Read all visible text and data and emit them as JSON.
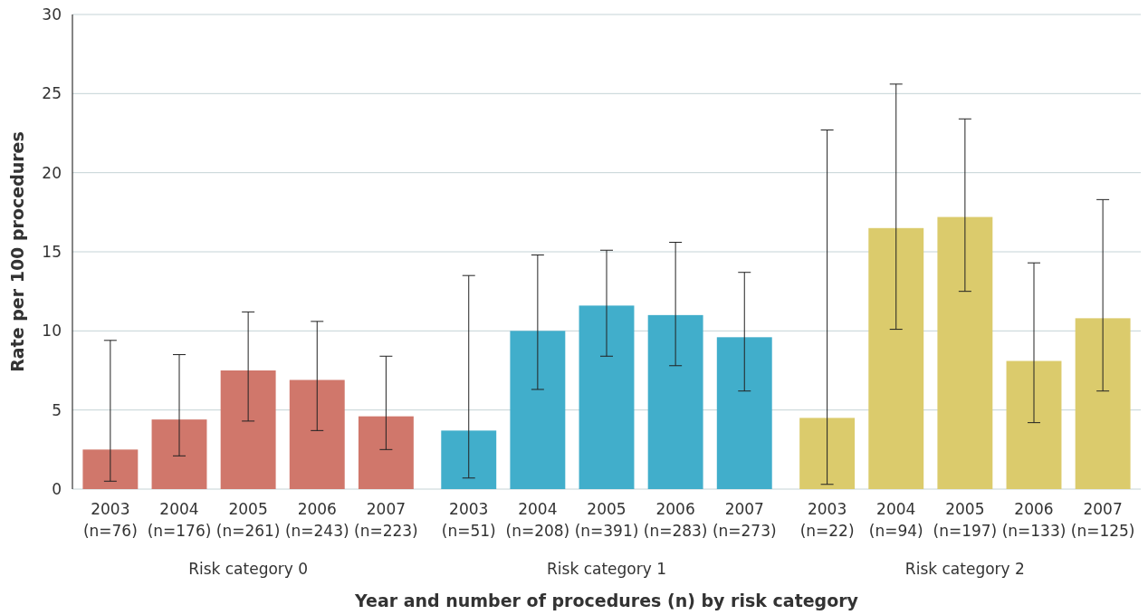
{
  "chart_data": {
    "type": "bar",
    "xlabel": "Year and number of procedures (n) by risk category",
    "ylabel": "Rate per 100 procedures",
    "categories": [
      "2003 (n=76)",
      "2004 (n=176)",
      "2005 (n=261)",
      "2006 (n=243)",
      "2007 (n=223)",
      "2003 (n=51)",
      "2004 (n=208)",
      "2005 (n=391)",
      "2006 (n=283)",
      "2007 (n=273)",
      "2003 (n=22)",
      "2004 (n=94)",
      "2005 (n=197)",
      "2006 (n=133)",
      "2007 (n=125)"
    ],
    "values": [
      2.5,
      4.4,
      7.5,
      6.9,
      4.6,
      3.7,
      10.0,
      11.6,
      11.0,
      9.6,
      4.5,
      16.5,
      17.2,
      8.1,
      10.8
    ],
    "errors": [
      [
        0.5,
        9.4
      ],
      [
        2.1,
        8.5
      ],
      [
        4.3,
        11.2
      ],
      [
        3.7,
        10.6
      ],
      [
        2.5,
        8.4
      ],
      [
        0.7,
        13.5
      ],
      [
        6.3,
        14.8
      ],
      [
        8.4,
        15.1
      ],
      [
        7.8,
        15.6
      ],
      [
        6.2,
        13.7
      ],
      [
        0.3,
        22.7
      ],
      [
        10.1,
        25.6
      ],
      [
        12.5,
        23.4
      ],
      [
        4.2,
        14.3
      ],
      [
        6.2,
        18.3
      ]
    ],
    "colors": [
      "#d0776b",
      "#d0776b",
      "#d0776b",
      "#d0776b",
      "#d0776b",
      "#41aecb",
      "#41aecb",
      "#41aecb",
      "#41aecb",
      "#41aecb",
      "#dbcb6c",
      "#dbcb6c",
      "#dbcb6c",
      "#dbcb6c",
      "#dbcb6c"
    ],
    "annotations": [
      "Risk category 0",
      "Risk category 1",
      "Risk category 2"
    ],
    "ylim": [
      0,
      30
    ],
    "yticks": [
      0,
      5,
      10,
      15,
      20,
      25,
      30
    ],
    "grid": "y"
  }
}
